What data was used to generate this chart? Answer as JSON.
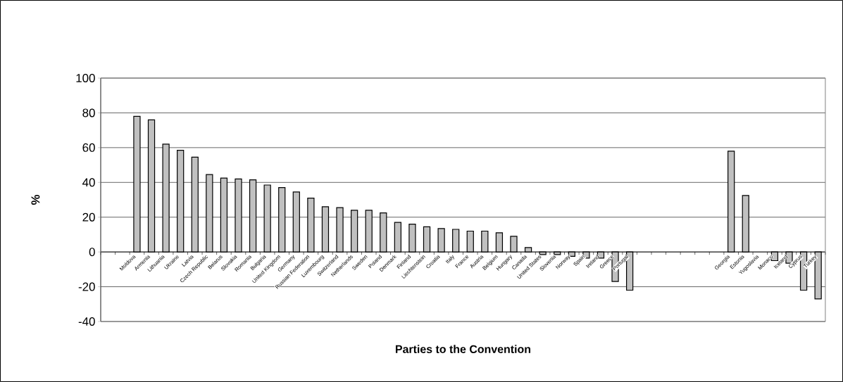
{
  "chart_data": {
    "type": "bar",
    "categories": [
      null,
      null,
      "Moldova",
      "Armenia",
      "Lithuania",
      "Ukraine",
      "Latvia",
      "Czech Republic",
      "Belarus",
      "Slovakia",
      "Romania",
      "Bulgaria",
      "United Kingdom",
      "Germany",
      "Russian Federation",
      "Luxembourg",
      "Switzerland",
      "Netherlands",
      "Sweden",
      "Poland",
      "Denmark",
      "Finland",
      "Liechtenstein",
      "Croatia",
      "Italy",
      "France",
      "Austria",
      "Belgium",
      "Hungary",
      "Canada",
      "United States",
      "Slovenia",
      "Norway",
      "Spain",
      "Ireland",
      "Greece",
      "Portugal",
      null,
      null,
      null,
      null,
      null,
      null,
      "Georgia",
      "Estonia",
      "Yugoslavia",
      "Monaco",
      "Iceland",
      "Cyprus",
      "Turkey"
    ],
    "values": [
      null,
      null,
      78,
      76,
      62,
      58.5,
      54.5,
      44.5,
      42.5,
      42,
      41.5,
      38.5,
      37,
      34.5,
      31,
      26,
      25.5,
      24,
      24,
      22.5,
      17,
      16,
      14.5,
      13.5,
      13,
      12,
      12,
      11,
      9,
      2.5,
      -1.5,
      -1.5,
      -2.5,
      -3.5,
      -3.5,
      -17,
      -22,
      null,
      null,
      null,
      null,
      null,
      null,
      58,
      32.5,
      null,
      -5,
      -6.5,
      -22,
      -27
    ],
    "color": "#c0c0c0",
    "ylim": [
      -40,
      100
    ],
    "yticks": [
      -40,
      -20,
      0,
      20,
      40,
      60,
      80,
      100
    ],
    "grid": "y",
    "xlabel": "Parties to the Convention",
    "ylabel": "%"
  }
}
